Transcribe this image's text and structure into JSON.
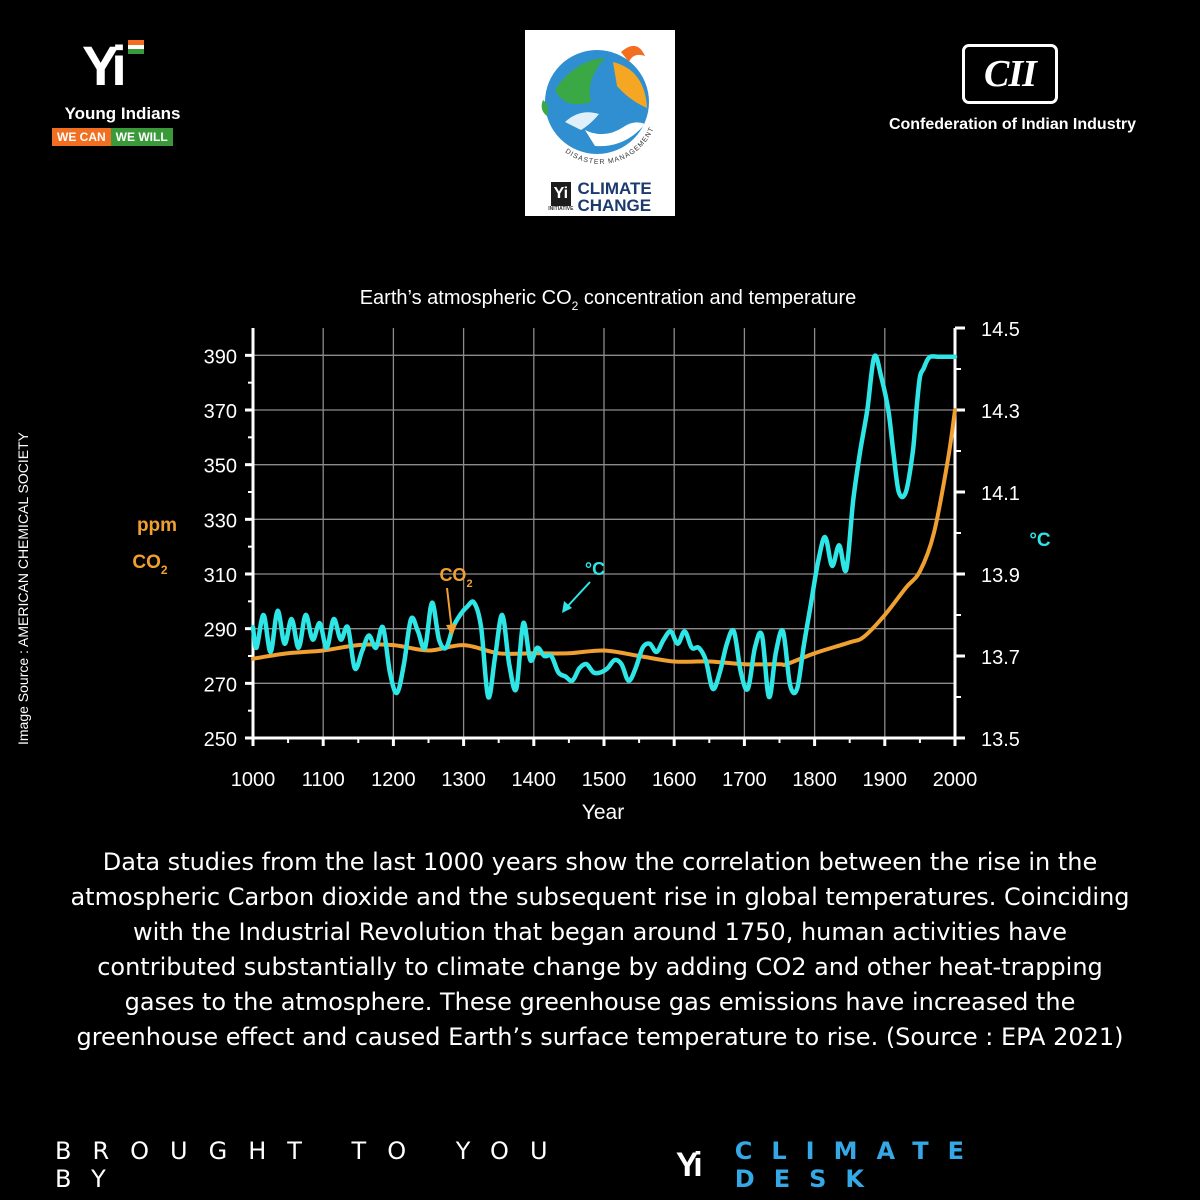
{
  "header": {
    "yi_mark": "Yi",
    "yi_name": "Young Indians",
    "yi_slogan_1": "WE CAN",
    "yi_slogan_2": "WE WILL",
    "center_logo_arc": "DISASTER MANAGEMENT",
    "center_logo_yi": "Yi",
    "center_logo_initiative": "INITIATIVE",
    "center_logo_line1": "CLIMATE",
    "center_logo_line2": "CHANGE",
    "cii_mark": "CII",
    "cii_name": "Confederation of Indian Industry"
  },
  "side_credit": "Image Source : AMERICAN CHEMICAL SOCIETY",
  "chart_data": {
    "type": "line",
    "title_prefix": "Earth’s atmospheric CO",
    "title_sub": "2",
    "title_suffix": " concentration and temperature",
    "xlabel": "Year",
    "x_ticks": [
      1000,
      1100,
      1200,
      1300,
      1400,
      1500,
      1600,
      1700,
      1800,
      1900,
      2000
    ],
    "xlim": [
      1000,
      2000
    ],
    "y_left": {
      "label_top": "ppm",
      "label_bottom_prefix": "CO",
      "label_bottom_sub": "2",
      "ticks": [
        250,
        270,
        290,
        310,
        330,
        350,
        370,
        390
      ],
      "lim": [
        250,
        400
      ]
    },
    "y_right": {
      "label": "°C",
      "ticks": [
        13.5,
        13.7,
        13.9,
        14.1,
        14.3,
        14.5
      ],
      "lim": [
        13.5,
        14.5
      ]
    },
    "grid": true,
    "colors": {
      "co2": "#f0a030",
      "temp": "#2ee6e6",
      "grid": "#8c8c8c"
    },
    "annotations": [
      {
        "text_prefix": "CO",
        "text_sub": "2",
        "points_to": "co2",
        "at_x": 1290
      },
      {
        "text": "°C",
        "points_to": "temp",
        "at_x": 1415
      }
    ],
    "series": [
      {
        "id": "co2",
        "axis": "left",
        "x": [
          1000,
          1050,
          1100,
          1150,
          1200,
          1250,
          1300,
          1350,
          1400,
          1450,
          1500,
          1550,
          1600,
          1650,
          1700,
          1750,
          1760,
          1800,
          1850,
          1870,
          1900,
          1930,
          1950,
          1970,
          1990,
          2000
        ],
        "values": [
          279,
          281,
          282,
          284,
          284,
          282,
          284,
          281,
          281,
          281,
          282,
          280,
          278,
          278,
          277,
          277,
          277,
          281,
          285,
          287,
          295,
          305,
          311,
          325,
          352,
          370
        ]
      },
      {
        "id": "temp",
        "axis": "right",
        "x": [
          1000,
          1005,
          1015,
          1025,
          1035,
          1045,
          1055,
          1065,
          1075,
          1085,
          1095,
          1105,
          1115,
          1125,
          1135,
          1145,
          1155,
          1165,
          1175,
          1185,
          1195,
          1205,
          1215,
          1225,
          1235,
          1245,
          1255,
          1265,
          1275,
          1285,
          1295,
          1305,
          1315,
          1325,
          1335,
          1345,
          1355,
          1365,
          1375,
          1385,
          1395,
          1405,
          1415,
          1425,
          1435,
          1445,
          1455,
          1465,
          1475,
          1485,
          1495,
          1505,
          1515,
          1525,
          1535,
          1545,
          1555,
          1565,
          1575,
          1585,
          1595,
          1605,
          1615,
          1625,
          1635,
          1645,
          1655,
          1665,
          1675,
          1685,
          1695,
          1705,
          1715,
          1725,
          1735,
          1745,
          1755,
          1765,
          1775,
          1785,
          1795,
          1805,
          1815,
          1825,
          1835,
          1845,
          1855,
          1865,
          1875,
          1885,
          1895,
          1905,
          1912,
          1920,
          1930,
          1940,
          1945,
          1950,
          1955,
          1960,
          1965,
          1975,
          1985,
          1995,
          2000
        ],
        "values": [
          13.77,
          13.72,
          13.8,
          13.71,
          13.81,
          13.73,
          13.79,
          13.72,
          13.8,
          13.74,
          13.78,
          13.72,
          13.79,
          13.74,
          13.77,
          13.67,
          13.71,
          13.75,
          13.72,
          13.77,
          13.66,
          13.61,
          13.68,
          13.79,
          13.76,
          13.72,
          13.83,
          13.74,
          13.72,
          13.77,
          13.8,
          13.82,
          13.83,
          13.77,
          13.6,
          13.7,
          13.8,
          13.68,
          13.62,
          13.78,
          13.69,
          13.72,
          13.7,
          13.7,
          13.66,
          13.65,
          13.64,
          13.67,
          13.68,
          13.66,
          13.66,
          13.67,
          13.69,
          13.68,
          13.64,
          13.67,
          13.72,
          13.73,
          13.71,
          13.74,
          13.76,
          13.73,
          13.76,
          13.72,
          13.72,
          13.69,
          13.62,
          13.66,
          13.73,
          13.76,
          13.66,
          13.62,
          13.72,
          13.75,
          13.6,
          13.71,
          13.76,
          13.63,
          13.62,
          13.73,
          13.83,
          13.93,
          13.99,
          13.92,
          13.97,
          13.91,
          14.08,
          14.2,
          14.3,
          14.43,
          14.38,
          14.3,
          14.2,
          14.1,
          14.1,
          14.2,
          14.3,
          14.38,
          14.4,
          14.42,
          14.43,
          14.43,
          14.43,
          14.43,
          14.43
        ]
      }
    ]
  },
  "caption": "Data studies from the last 1000 years show the correlation between the rise in the atmospheric Carbon dioxide and the subsequent rise in global temperatures. Coinciding with the Industrial Revolution that began around 1750, human activities have contributed substantially to climate change by adding CO2 and other heat-trapping gases to the atmosphere. These greenhouse gas emissions have increased the greenhouse effect and caused Earth’s surface temperature to rise. (Source : EPA 2021)",
  "footer": {
    "lead": "BROUGHT TO YOU BY",
    "yi": "Yi",
    "desk": "CLIMATE DESK"
  }
}
